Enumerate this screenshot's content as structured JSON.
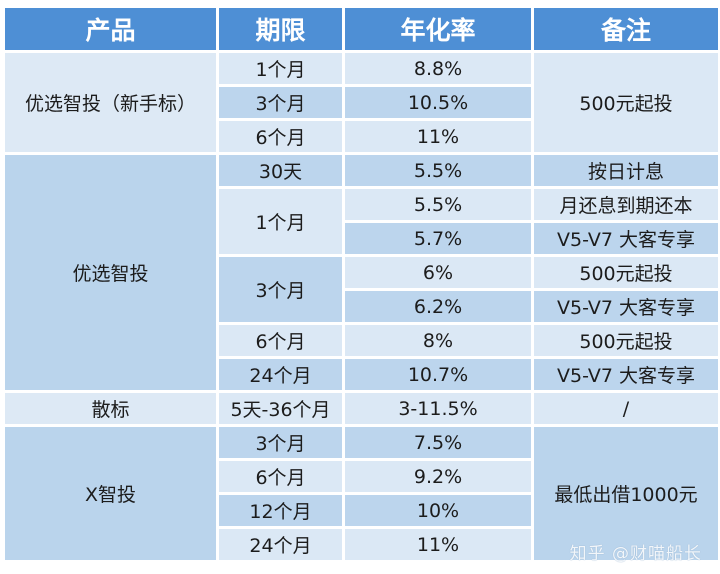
{
  "headers": [
    "产品",
    "期限",
    "年化率",
    "备注"
  ],
  "groups": [
    {
      "product": "优选智投（新手标）",
      "rows": [
        {
          "term": "1个月",
          "rate": "8.8%"
        },
        {
          "term": "3个月",
          "rate": "10.5%"
        },
        {
          "term": "6个月",
          "rate": "11%"
        }
      ],
      "note": "500元起投"
    },
    {
      "product": "优选智投",
      "rows": [
        {
          "term": "30天",
          "rate": "5.5%",
          "note": "按日计息"
        },
        {
          "term": "1个月",
          "rate": "5.5%",
          "note": "月还息到期还本"
        },
        {
          "term": "",
          "rate": "5.7%",
          "note": "V5-V7 大客专享"
        },
        {
          "term": "3个月",
          "rate": "6%",
          "note": "500元起投"
        },
        {
          "term": "",
          "rate": "6.2%",
          "note": "V5-V7 大客专享"
        },
        {
          "term": "6个月",
          "rate": "8%",
          "note": "500元起投"
        },
        {
          "term": "24个月",
          "rate": "10.7%",
          "note": "V5-V7 大客专享"
        }
      ]
    },
    {
      "product": "散标",
      "rows": [
        {
          "term": "5天-36个月",
          "rate": "3-11.5%",
          "note": "/"
        }
      ]
    },
    {
      "product": "X智投",
      "rows": [
        {
          "term": "3个月",
          "rate": "7.5%"
        },
        {
          "term": "6个月",
          "rate": "9.2%"
        },
        {
          "term": "12个月",
          "rate": "10%"
        },
        {
          "term": "24个月",
          "rate": "11%"
        }
      ],
      "note": "最低出借1000元"
    }
  ],
  "watermark": "知乎 @财喵船长",
  "colors": {
    "header_bg": "#4e8fd5",
    "row_light": "#dbe8f5",
    "row_mid": "#bcd5ed"
  }
}
